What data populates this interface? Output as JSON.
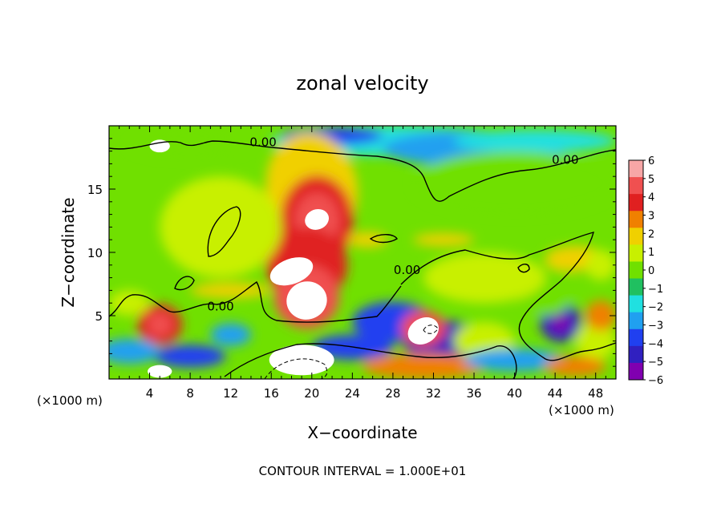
{
  "chart_data": {
    "type": "heatmap",
    "title": "zonal velocity",
    "xlabel": "X−coordinate",
    "ylabel": "Z−coordinate",
    "x_units_left": "(×1000 m)",
    "x_units_right": "(×1000 m)",
    "footer": "CONTOUR INTERVAL = 1.000E+01",
    "xlim": [
      0,
      50
    ],
    "ylim": [
      0,
      20
    ],
    "x_ticks": [
      4,
      8,
      12,
      16,
      20,
      24,
      28,
      32,
      36,
      40,
      44,
      48
    ],
    "y_ticks": [
      5,
      10,
      15
    ],
    "colorbar": {
      "levels": [
        6,
        5,
        4,
        3,
        2,
        1,
        0,
        -1,
        -2,
        -3,
        -4,
        -5,
        -6
      ],
      "labels": [
        "6",
        "5",
        "4",
        "3",
        "2",
        "1",
        "0",
        "−1",
        "−2",
        "−3",
        "−4",
        "−5",
        "−6"
      ],
      "colors": [
        "#f7a6a6",
        "#f05050",
        "#e02020",
        "#f08000",
        "#f0d000",
        "#c8f000",
        "#70e000",
        "#20c060",
        "#20e0e0",
        "#20a0f0",
        "#2040f0",
        "#3020c0",
        "#8000b0"
      ]
    },
    "contour_labels": [
      {
        "text": "0.00",
        "x": 15.2,
        "y": 18.4
      },
      {
        "text": "0.00",
        "x": 45.0,
        "y": 17.0
      },
      {
        "text": "0.00",
        "x": 11.0,
        "y": 5.4
      },
      {
        "text": "0.00",
        "x": 29.4,
        "y": 8.3
      }
    ],
    "features": [
      {
        "kind": "positive-max",
        "x": 20.5,
        "y": 12.6,
        "value": 6
      },
      {
        "kind": "positive-max",
        "x": 19.5,
        "y": 6.2,
        "value": 6
      },
      {
        "kind": "positive-max",
        "x": 18.0,
        "y": 8.5,
        "value": 6
      },
      {
        "kind": "positive-max",
        "x": 19.0,
        "y": 1.5,
        "value": 6
      },
      {
        "kind": "positive-max",
        "x": 31.0,
        "y": 3.8,
        "value": 6
      },
      {
        "kind": "positive-max",
        "x": 4.8,
        "y": 4.2,
        "value": 4
      },
      {
        "kind": "negative-min",
        "x": 44.5,
        "y": 4.5,
        "value": -6
      },
      {
        "kind": "negative-min",
        "x": 22.0,
        "y": 19.0,
        "value": -5
      },
      {
        "kind": "negative-min",
        "x": 36.0,
        "y": 18.0,
        "value": -4
      }
    ]
  }
}
